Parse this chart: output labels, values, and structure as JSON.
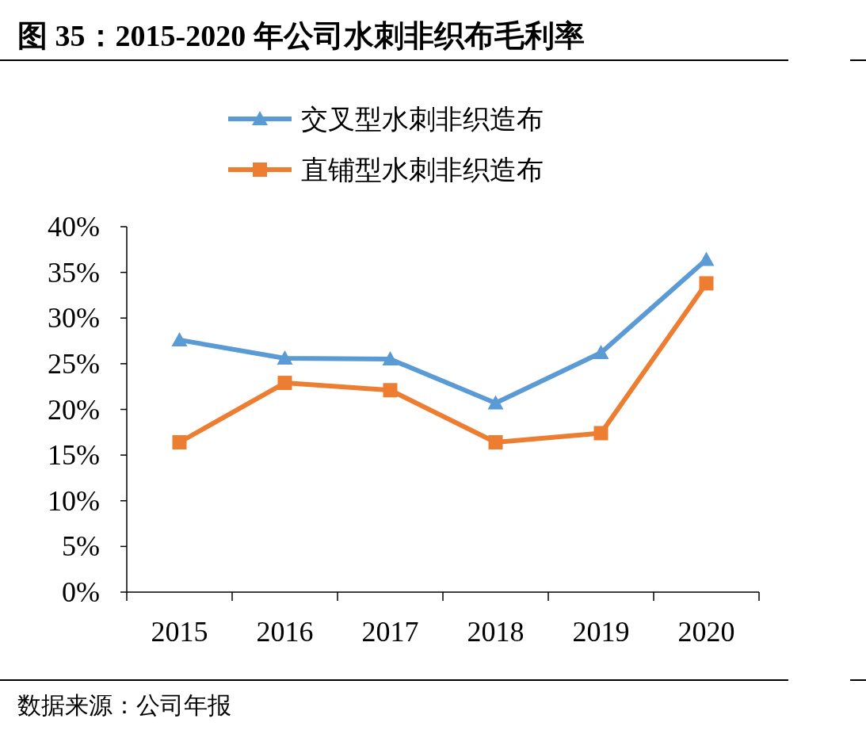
{
  "chart_data": {
    "type": "line",
    "title": "图 35：2015-2020 年公司水刺非织布毛利率",
    "categories": [
      "2015",
      "2016",
      "2017",
      "2018",
      "2019",
      "2020"
    ],
    "series": [
      {
        "name": "交叉型水刺非织造布",
        "color": "#5b9bd5",
        "marker": "triangle",
        "values": [
          27.6,
          25.6,
          25.5,
          20.7,
          26.2,
          36.4
        ]
      },
      {
        "name": "直铺型水刺非织造布",
        "color": "#ed7d31",
        "marker": "square",
        "values": [
          16.4,
          22.9,
          22.1,
          16.4,
          17.4,
          33.8
        ]
      }
    ],
    "ylim": [
      0,
      40
    ],
    "yticks": [
      {
        "value": 0,
        "label": "0%"
      },
      {
        "value": 5,
        "label": "5%"
      },
      {
        "value": 10,
        "label": "10%"
      },
      {
        "value": 15,
        "label": "15%"
      },
      {
        "value": 20,
        "label": "20%"
      },
      {
        "value": 25,
        "label": "25%"
      },
      {
        "value": 30,
        "label": "30%"
      },
      {
        "value": 35,
        "label": "35%"
      },
      {
        "value": 40,
        "label": "40%"
      }
    ],
    "legend": "top",
    "grid": false,
    "annotations": [
      "数据来源：公司年报"
    ]
  }
}
